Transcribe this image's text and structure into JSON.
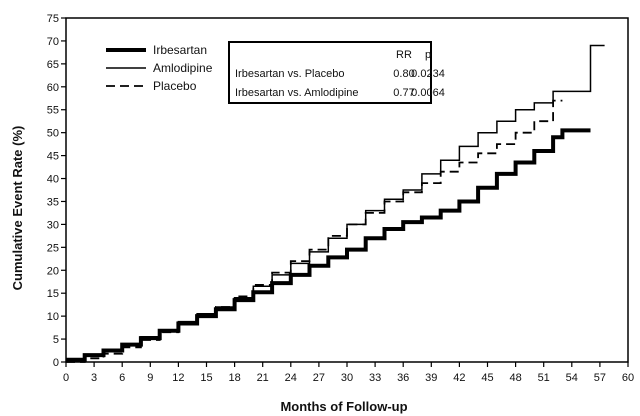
{
  "chart_data": {
    "type": "line",
    "xlabel": "Months of Follow-up",
    "ylabel": "Cumulative Event Rate (%)",
    "xlim": [
      0,
      60
    ],
    "ylim": [
      0,
      75
    ],
    "x_ticks": [
      0,
      3,
      6,
      9,
      12,
      15,
      18,
      21,
      24,
      27,
      30,
      33,
      36,
      39,
      42,
      45,
      48,
      51,
      54,
      57,
      60
    ],
    "y_ticks": [
      0,
      5,
      10,
      15,
      20,
      25,
      30,
      35,
      40,
      45,
      50,
      55,
      60,
      65,
      70,
      75
    ],
    "grid": false,
    "legend_position": "top-left",
    "series": [
      {
        "name": "Irbesartan",
        "style": "thick-solid",
        "color": "#000000",
        "points": [
          [
            0,
            0.5
          ],
          [
            2,
            1.5
          ],
          [
            4,
            2.5
          ],
          [
            6,
            3.8
          ],
          [
            8,
            5.2
          ],
          [
            10,
            6.8
          ],
          [
            12,
            8.4
          ],
          [
            14,
            10
          ],
          [
            16,
            11.5
          ],
          [
            18,
            13.5
          ],
          [
            20,
            15.2
          ],
          [
            22,
            17.2
          ],
          [
            24,
            19
          ],
          [
            26,
            21
          ],
          [
            28,
            22.8
          ],
          [
            30,
            24.5
          ],
          [
            32,
            27
          ],
          [
            34,
            29
          ],
          [
            36,
            30.5
          ],
          [
            38,
            31.5
          ],
          [
            40,
            33
          ],
          [
            42,
            35
          ],
          [
            44,
            38
          ],
          [
            46,
            41
          ],
          [
            48,
            43.5
          ],
          [
            50,
            46
          ],
          [
            52,
            49
          ],
          [
            53,
            50.5
          ],
          [
            56,
            50.5
          ]
        ]
      },
      {
        "name": "Amlodipine",
        "style": "thin-solid",
        "color": "#000000",
        "points": [
          [
            0,
            0.5
          ],
          [
            2,
            1.5
          ],
          [
            4,
            2.5
          ],
          [
            6,
            3.8
          ],
          [
            8,
            5.5
          ],
          [
            10,
            7
          ],
          [
            12,
            8.8
          ],
          [
            14,
            10.5
          ],
          [
            16,
            12
          ],
          [
            18,
            14
          ],
          [
            20,
            16.5
          ],
          [
            22,
            19
          ],
          [
            24,
            21.5
          ],
          [
            26,
            24
          ],
          [
            28,
            27
          ],
          [
            30,
            30
          ],
          [
            32,
            33
          ],
          [
            34,
            35.5
          ],
          [
            36,
            37.5
          ],
          [
            38,
            41
          ],
          [
            40,
            44
          ],
          [
            42,
            47
          ],
          [
            44,
            50
          ],
          [
            46,
            52.5
          ],
          [
            48,
            55
          ],
          [
            50,
            56.5
          ],
          [
            52,
            57
          ],
          [
            52,
            59
          ],
          [
            54,
            59
          ],
          [
            56,
            59
          ],
          [
            56,
            69
          ],
          [
            57.5,
            69
          ]
        ]
      },
      {
        "name": "Placebo",
        "style": "dashed",
        "color": "#000000",
        "points": [
          [
            0,
            0
          ],
          [
            2,
            0.8
          ],
          [
            4,
            1.8
          ],
          [
            6,
            3.2
          ],
          [
            8,
            4.8
          ],
          [
            10,
            6.5
          ],
          [
            12,
            8.3
          ],
          [
            14,
            10
          ],
          [
            16,
            12
          ],
          [
            18,
            14.3
          ],
          [
            20,
            16.8
          ],
          [
            22,
            19.5
          ],
          [
            24,
            22
          ],
          [
            26,
            24.5
          ],
          [
            28,
            27.5
          ],
          [
            30,
            30
          ],
          [
            32,
            32.5
          ],
          [
            34,
            35
          ],
          [
            36,
            37
          ],
          [
            38,
            39
          ],
          [
            40,
            41.5
          ],
          [
            42,
            43.5
          ],
          [
            44,
            45.5
          ],
          [
            46,
            47.5
          ],
          [
            48,
            50
          ],
          [
            50,
            52.5
          ],
          [
            52,
            55
          ],
          [
            52,
            57
          ],
          [
            53,
            57
          ]
        ]
      }
    ],
    "stats_table": {
      "headers": [
        "",
        "RR",
        "p"
      ],
      "rows": [
        [
          "Irbesartan vs. Placebo",
          "0.80",
          "0.0234"
        ],
        [
          "Irbesartan vs. Amlodipine",
          "0.77",
          "0.0064"
        ]
      ]
    }
  }
}
